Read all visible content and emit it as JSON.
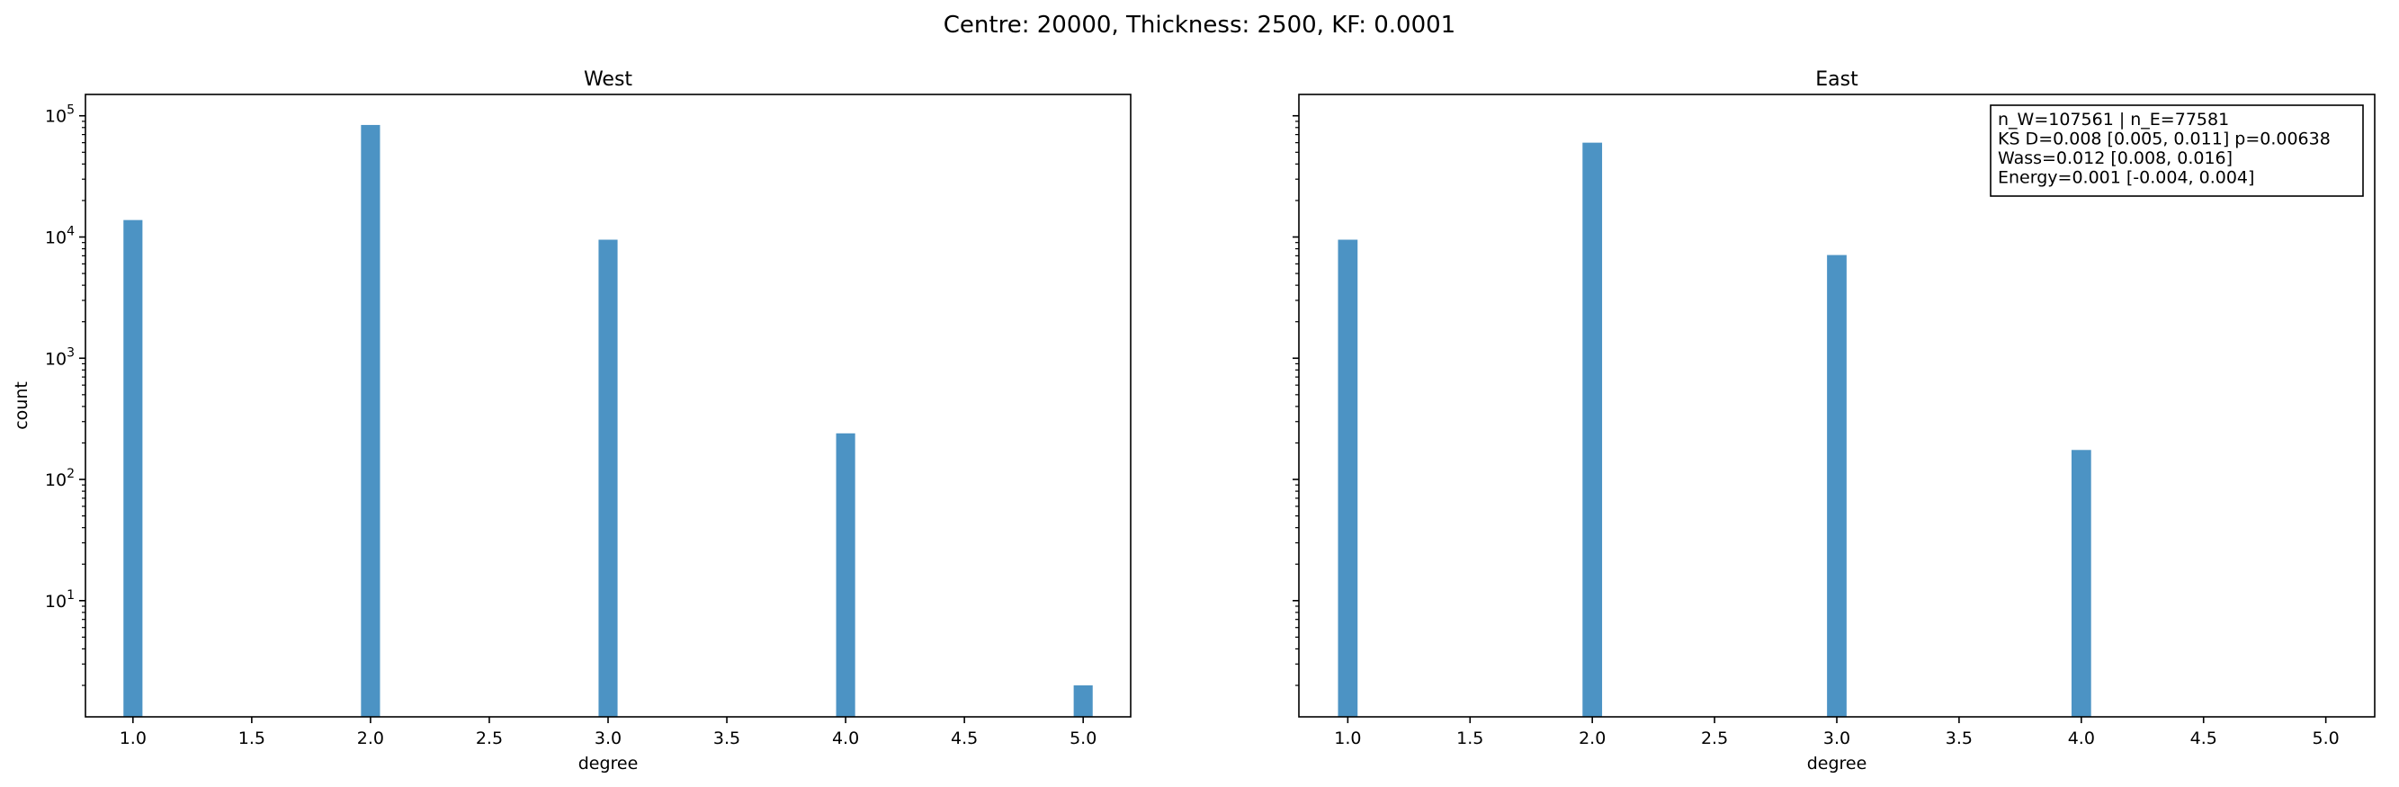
{
  "chart_data": {
    "title": "Centre: 20000, Thickness: 2500, KF: 0.0001",
    "ylabel": "count",
    "bar_color": "#4c93c4",
    "yscale": "log",
    "ylim": [
      1.1,
      150000
    ],
    "y_ticks": [
      {
        "value": 10,
        "base": "10",
        "exp": "1"
      },
      {
        "value": 100,
        "base": "10",
        "exp": "2"
      },
      {
        "value": 1000,
        "base": "10",
        "exp": "3"
      },
      {
        "value": 10000,
        "base": "10",
        "exp": "4"
      },
      {
        "value": 100000,
        "base": "10",
        "exp": "5"
      }
    ],
    "panels": [
      {
        "type": "bar",
        "title": "West",
        "xlabel": "degree",
        "xlim": [
          0.8,
          5.2
        ],
        "x_ticks": [
          "1.0",
          "1.5",
          "2.0",
          "2.5",
          "3.0",
          "3.5",
          "4.0",
          "4.5",
          "5.0"
        ],
        "x": [
          1,
          2,
          3,
          4,
          5
        ],
        "values": [
          13800,
          84000,
          9500,
          240,
          2
        ]
      },
      {
        "type": "bar",
        "title": "East",
        "xlabel": "degree",
        "xlim": [
          0.8,
          5.2
        ],
        "x_ticks": [
          "1.0",
          "1.5",
          "2.0",
          "2.5",
          "3.0",
          "3.5",
          "4.0",
          "4.5",
          "5.0"
        ],
        "x": [
          1,
          2,
          3,
          4,
          5
        ],
        "values": [
          9500,
          60000,
          7100,
          175,
          0
        ],
        "annotation": [
          "n_W=107561 | n_E=77581",
          "KS D=0.008 [0.005, 0.011]  p=0.00638",
          "Wass=0.012 [0.008, 0.016]",
          "Energy=0.001 [-0.004, 0.004]"
        ]
      }
    ]
  }
}
